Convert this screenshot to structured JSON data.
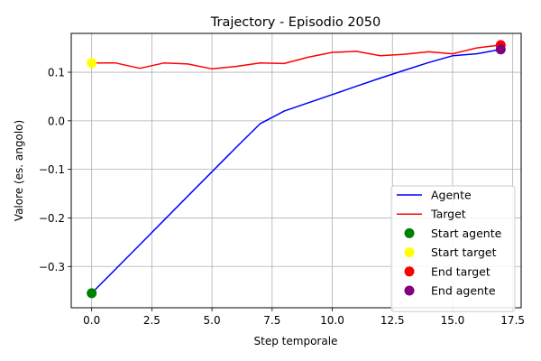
{
  "chart_data": {
    "type": "line",
    "title": "Trajectory - Episodio 2050",
    "xlabel": "Step temporale",
    "ylabel": "Valore (es. angolo)",
    "xlim": [
      -0.85,
      17.85
    ],
    "ylim": [
      -0.385,
      0.18
    ],
    "grid": true,
    "legend_position": "lower-right",
    "x_ticks": [
      0.0,
      2.5,
      5.0,
      7.5,
      10.0,
      12.5,
      15.0,
      17.5
    ],
    "x_tick_labels": [
      "0.0",
      "2.5",
      "5.0",
      "7.5",
      "10.0",
      "12.5",
      "15.0",
      "17.5"
    ],
    "y_ticks": [
      -0.3,
      -0.2,
      -0.1,
      0.0,
      0.1
    ],
    "y_tick_labels": [
      "−0.3",
      "−0.2",
      "−0.1",
      "0.0",
      "0.1"
    ],
    "x": [
      0,
      1,
      2,
      3,
      4,
      5,
      6,
      7,
      8,
      9,
      10,
      11,
      12,
      13,
      14,
      15,
      16,
      17
    ],
    "series": [
      {
        "name": "Agente",
        "color": "#0000ff",
        "values": [
          -0.355,
          -0.305,
          -0.255,
          -0.205,
          -0.155,
          -0.105,
          -0.055,
          -0.006,
          0.02,
          0.037,
          0.054,
          0.071,
          0.088,
          0.104,
          0.12,
          0.134,
          0.138,
          0.147
        ]
      },
      {
        "name": "Target",
        "color": "#ff0000",
        "values": [
          0.119,
          0.119,
          0.108,
          0.119,
          0.117,
          0.107,
          0.112,
          0.119,
          0.118,
          0.131,
          0.141,
          0.143,
          0.134,
          0.137,
          0.142,
          0.138,
          0.15,
          0.156
        ]
      }
    ],
    "points": [
      {
        "name": "Start agente",
        "x": 0,
        "y": -0.355,
        "color": "#008000"
      },
      {
        "name": "Start target",
        "x": 0,
        "y": 0.119,
        "color": "#ffff00"
      },
      {
        "name": "End target",
        "x": 17,
        "y": 0.156,
        "color": "#ff0000"
      },
      {
        "name": "End agente",
        "x": 17,
        "y": 0.147,
        "color": "#800080"
      }
    ]
  }
}
